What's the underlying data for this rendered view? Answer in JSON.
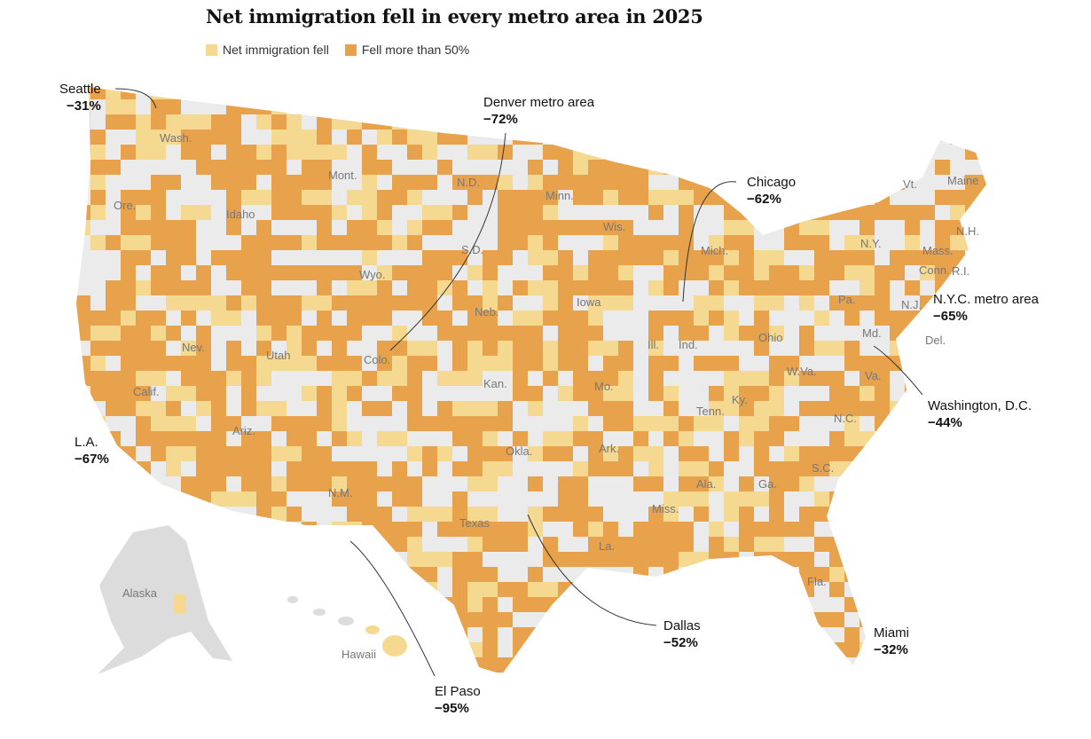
{
  "title": "Net immigration fell in every metro area in 2025",
  "legend": [
    {
      "label": "Net immigration fell",
      "color": "#f5d990"
    },
    {
      "label": "Fell more than 50%",
      "color": "#e8a24c"
    }
  ],
  "colors": {
    "land": "#ebebeb",
    "alaska": "#dcdcdc",
    "border": "#c8c8c8"
  },
  "states": [
    "Wash.",
    "Ore.",
    "Idaho",
    "Mont.",
    "Wyo.",
    "Nev.",
    "Calif.",
    "Utah",
    "Ariz.",
    "Colo.",
    "N.M.",
    "N.D.",
    "S.D.",
    "Neb.",
    "Kan.",
    "Okla.",
    "Texas",
    "Minn.",
    "Iowa",
    "Mo.",
    "Ark.",
    "La.",
    "Wis.",
    "Ill.",
    "Mich.",
    "Ind.",
    "Ohio",
    "Ky.",
    "Tenn.",
    "Miss.",
    "Ala.",
    "Ga.",
    "Fla.",
    "S.C.",
    "N.C.",
    "Va.",
    "W.Va.",
    "Pa.",
    "N.Y.",
    "Vt.",
    "Maine",
    "N.H.",
    "Mass.",
    "R.I.",
    "Conn.",
    "N.J.",
    "Del.",
    "Md.",
    "Alaska",
    "Hawaii"
  ],
  "annotations": [
    {
      "name": "Seattle",
      "value": "−31%"
    },
    {
      "name": "Denver metro area",
      "value": "−72%"
    },
    {
      "name": "Chicago",
      "value": "−62%"
    },
    {
      "name": "N.Y.C. metro area",
      "value": "−65%"
    },
    {
      "name": "Washington, D.C.",
      "value": "−44%"
    },
    {
      "name": "L.A.",
      "value": "−67%"
    },
    {
      "name": "Dallas",
      "value": "−52%"
    },
    {
      "name": "Miami",
      "value": "−32%"
    },
    {
      "name": "El Paso",
      "value": "−95%"
    }
  ]
}
